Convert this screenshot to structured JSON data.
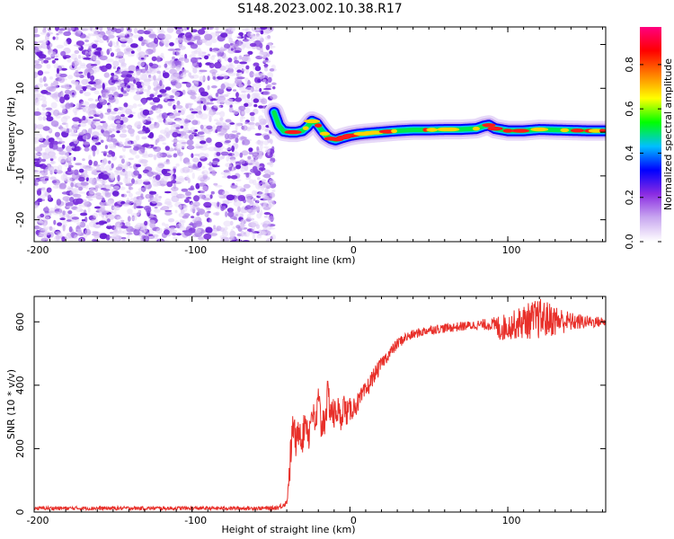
{
  "title": "S148.2023.002.10.38.R17",
  "chart_data": [
    {
      "type": "heatmap",
      "xlabel": "Height of straight line (km)",
      "ylabel": "Frequency (Hz)",
      "xlim": [
        -200,
        162
      ],
      "ylim": [
        -25,
        24
      ],
      "xticks": [
        -200,
        -100,
        0,
        100
      ],
      "yticks": [
        -20,
        -10,
        0,
        10,
        20
      ],
      "colorbar": {
        "label": "Normalized spectral amplitude",
        "range": [
          0,
          0.97
        ],
        "ticks": [
          0.0,
          0.2,
          0.4,
          0.6,
          0.8
        ],
        "colormap": [
          "#ffffff",
          "#c9a8f0",
          "#8a2be2",
          "#0000ff",
          "#00bfff",
          "#00ff00",
          "#ffff00",
          "#ff8000",
          "#ff0000",
          "#ff0080"
        ]
      },
      "noise_region": {
        "x": [
          -200,
          -48
        ],
        "y": [
          -25,
          24
        ]
      },
      "signal_ridge": {
        "x": [
          -48,
          -45,
          -42,
          -38,
          -34,
          -30,
          -27,
          -24,
          -21,
          -18,
          -15,
          -12,
          -9,
          -5,
          0,
          5,
          10,
          20,
          30,
          40,
          50,
          60,
          70,
          80,
          85,
          88,
          92,
          100,
          110,
          120,
          130,
          140,
          150,
          162
        ],
        "frequency": [
          4.5,
          1.5,
          0.2,
          0.0,
          0.0,
          0.3,
          1.2,
          2.5,
          2.0,
          0.5,
          -0.8,
          -1.5,
          -1.8,
          -1.3,
          -0.8,
          -0.5,
          -0.3,
          0.0,
          0.3,
          0.5,
          0.5,
          0.6,
          0.6,
          0.8,
          1.4,
          1.6,
          0.8,
          0.3,
          0.3,
          0.6,
          0.5,
          0.4,
          0.3,
          0.3
        ]
      }
    },
    {
      "type": "line",
      "xlabel": "Height of straight line (km)",
      "ylabel": "SNR (10 * v/v)",
      "xlim": [
        -200,
        162
      ],
      "ylim": [
        0,
        680
      ],
      "xticks": [
        -200,
        -100,
        0,
        100
      ],
      "yticks": [
        0,
        200,
        400,
        600
      ],
      "series": [
        {
          "color": "#e8302a",
          "x": [
            -200,
            -100,
            -50,
            -45,
            -40,
            -38,
            -36,
            -34,
            -32,
            -30,
            -28,
            -26,
            -24,
            -22,
            -20,
            -18,
            -16,
            -14,
            -12,
            -10,
            -8,
            -6,
            -4,
            -2,
            0,
            2,
            4,
            6,
            8,
            10,
            12,
            15,
            18,
            20,
            25,
            30,
            35,
            40,
            50,
            60,
            70,
            80,
            90,
            95,
            100,
            110,
            120,
            130,
            140,
            150,
            162
          ],
          "values": [
            12,
            12,
            12,
            15,
            30,
            150,
            280,
            210,
            270,
            230,
            300,
            240,
            330,
            260,
            350,
            270,
            300,
            360,
            330,
            300,
            330,
            290,
            340,
            310,
            320,
            330,
            340,
            350,
            370,
            380,
            400,
            430,
            450,
            470,
            500,
            530,
            550,
            560,
            575,
            580,
            585,
            590,
            592,
            580,
            585,
            600,
            610,
            605,
            600,
            600,
            600
          ],
          "noise_amplitude": [
            6,
            6,
            6,
            8,
            10,
            60,
            50,
            50,
            50,
            50,
            50,
            50,
            50,
            50,
            60,
            60,
            60,
            60,
            55,
            55,
            50,
            45,
            45,
            40,
            40,
            35,
            35,
            30,
            30,
            30,
            30,
            25,
            25,
            20,
            20,
            18,
            16,
            15,
            15,
            15,
            15,
            15,
            20,
            45,
            40,
            55,
            65,
            50,
            30,
            20,
            15
          ]
        }
      ]
    }
  ]
}
